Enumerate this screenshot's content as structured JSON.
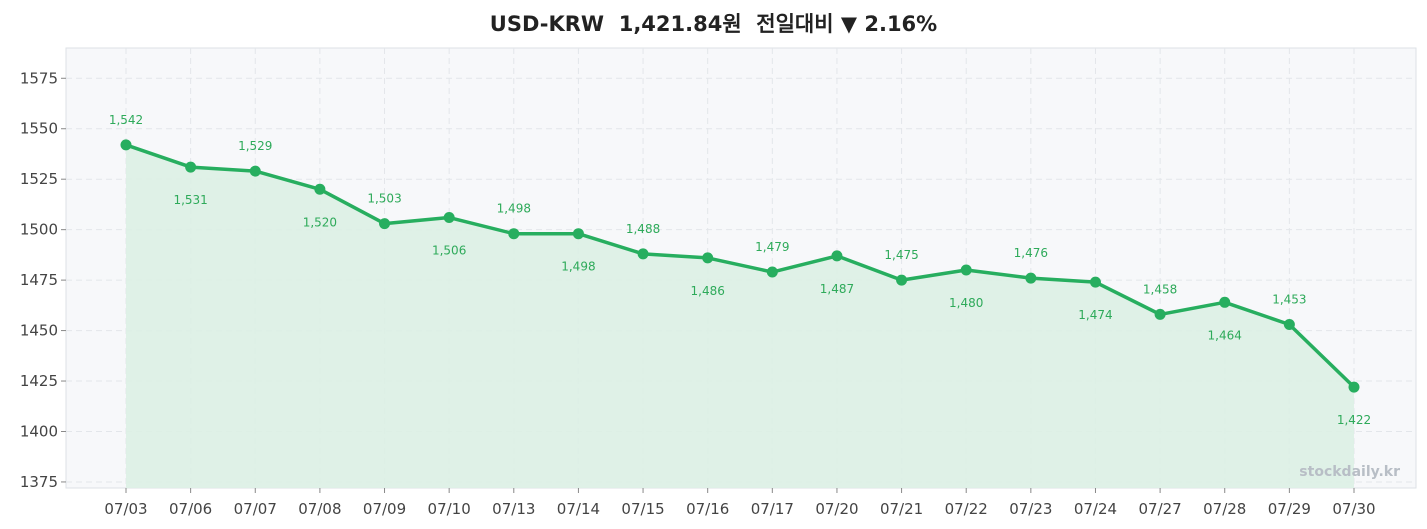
{
  "header": {
    "pair": "USD-KRW",
    "price": "1,421.84원",
    "change_label": "전일대비",
    "change_symbol": "▼",
    "change_pct": "2.16%"
  },
  "watermark": "stockdaily.kr",
  "colors": {
    "line": "#27ae5f",
    "fill": "#dcefe4",
    "plot_bg": "#f7f8fa",
    "grid": "#e3e6ea",
    "label": "#2eaa5a"
  },
  "chart_data": {
    "type": "line",
    "title": "USD-KRW 1,421.84원 전일대비 ▼ 2.16%",
    "categories": [
      "07/03",
      "07/06",
      "07/07",
      "07/08",
      "07/09",
      "07/10",
      "07/13",
      "07/14",
      "07/15",
      "07/16",
      "07/17",
      "07/20",
      "07/21",
      "07/22",
      "07/23",
      "07/24",
      "07/27",
      "07/28",
      "07/29",
      "07/30"
    ],
    "values": [
      1542,
      1531,
      1529,
      1520,
      1503,
      1506,
      1498,
      1498,
      1488,
      1486,
      1479,
      1487,
      1475,
      1480,
      1476,
      1474,
      1458,
      1464,
      1453,
      1422
    ],
    "data_labels": [
      "1,542",
      "1,531",
      "1,529",
      "1,520",
      "1,503",
      "1,506",
      "1,498",
      "1,498",
      "1,488",
      "1,486",
      "1,479",
      "1,487",
      "1,475",
      "1,480",
      "1,476",
      "1,474",
      "1,458",
      "1,464",
      "1,453",
      "1,422"
    ],
    "y_ticks": [
      1375,
      1400,
      1425,
      1450,
      1475,
      1500,
      1525,
      1550,
      1575
    ],
    "ylim": [
      1372,
      1590
    ],
    "grid": true,
    "area_fill": true,
    "xlabel": "",
    "ylabel": ""
  }
}
